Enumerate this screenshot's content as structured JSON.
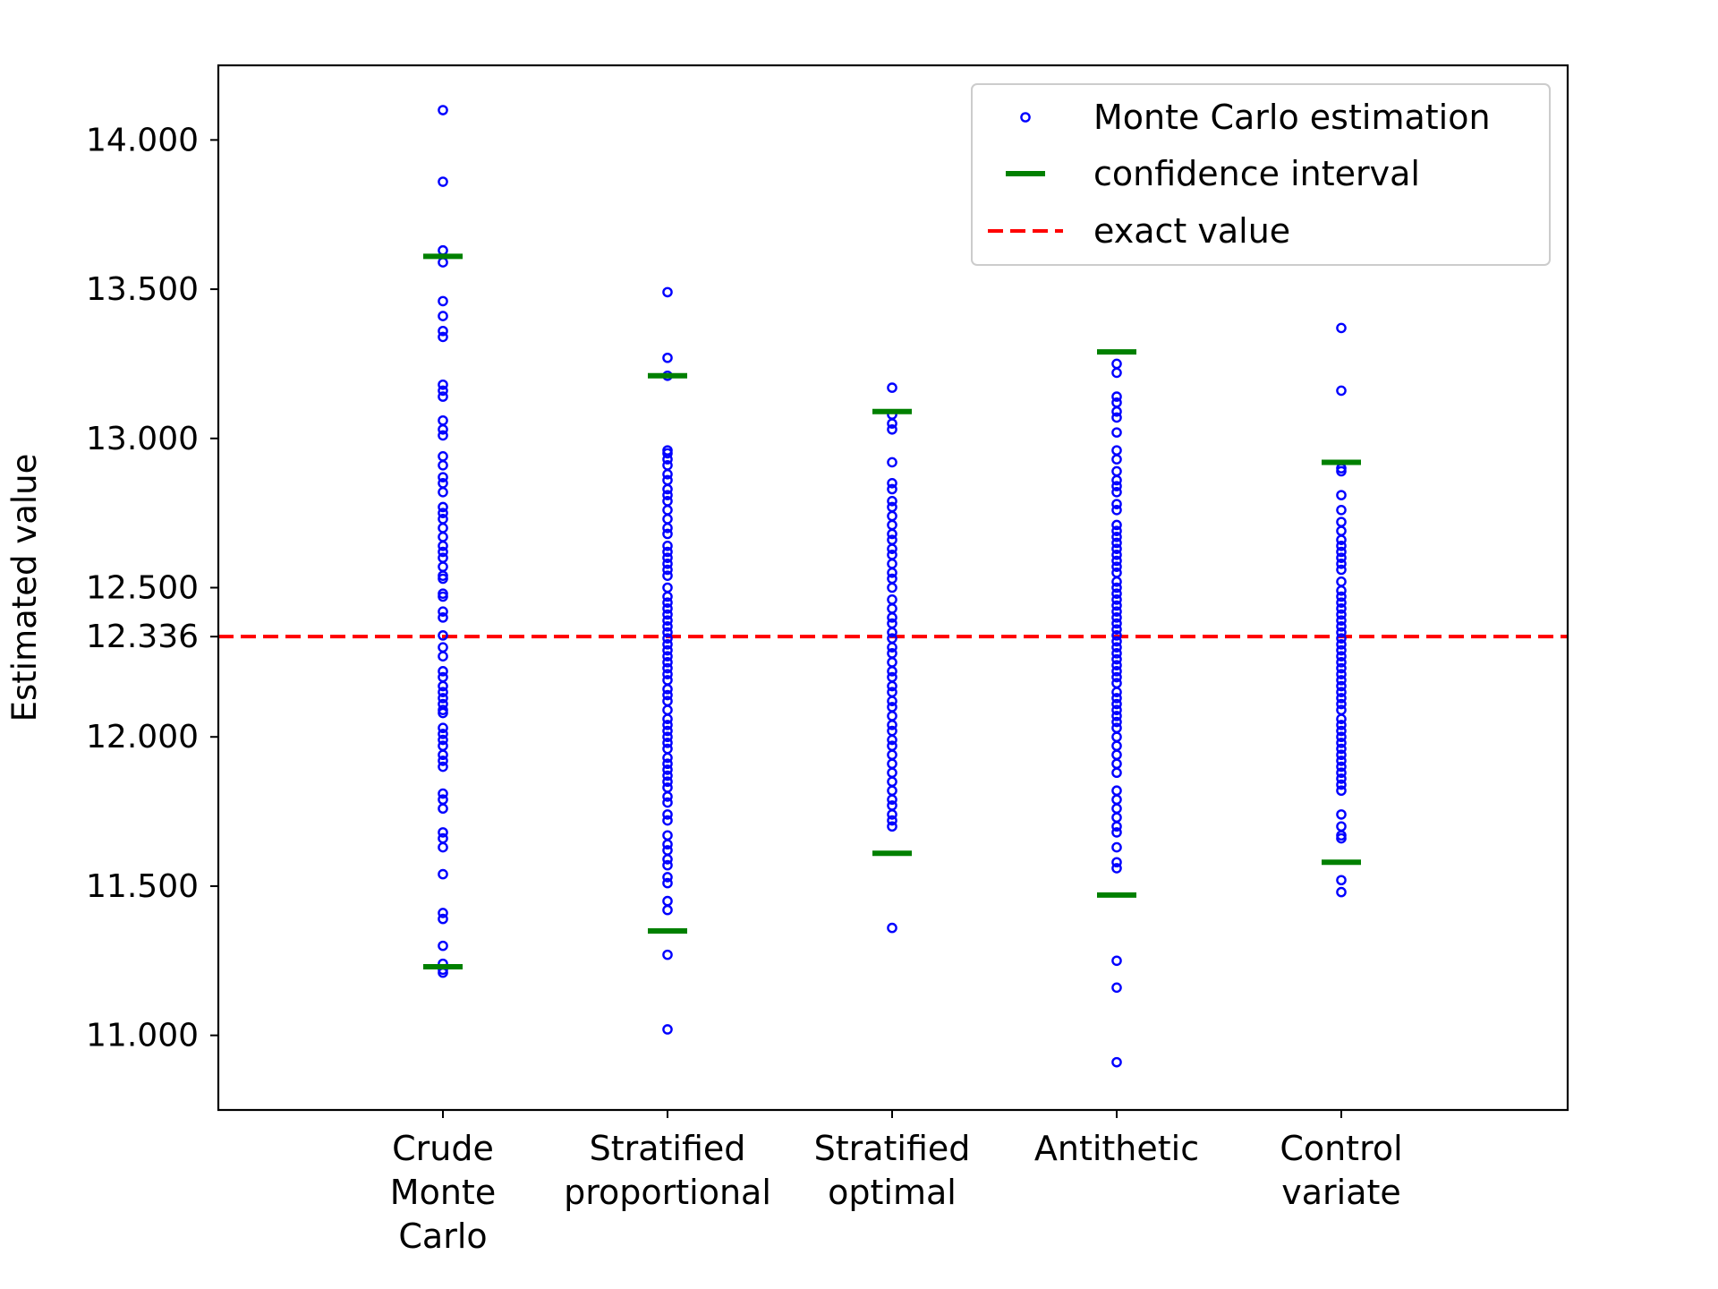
{
  "chart_data": {
    "type": "scatter",
    "title": "",
    "xlabel": "",
    "ylabel": "Estimated value",
    "ylim": [
      10.75,
      14.25
    ],
    "yticks": [
      11.0,
      11.5,
      12.0,
      12.336,
      12.5,
      13.0,
      13.5,
      14.0
    ],
    "ytick_labels": [
      "11.000",
      "11.500",
      "12.000",
      "12.336",
      "12.500",
      "13.000",
      "13.500",
      "14.000"
    ],
    "grid": false,
    "legend_position": "upper right",
    "categories": [
      "Crude\nMonte\nCarlo",
      "Stratified\nproportional",
      "Stratified\noptimal",
      "Antithetic",
      "Control\nvariate"
    ],
    "exact_value": 12.336,
    "colors": {
      "points": "#0000ff",
      "confidence": "#008000",
      "exact": "#ff0000"
    },
    "legend": [
      {
        "label": "Monte Carlo estimation",
        "marker": "circle",
        "color": "#0000ff"
      },
      {
        "label": "confidence interval",
        "marker": "hbar",
        "color": "#008000"
      },
      {
        "label": "exact value",
        "marker": "dashed-line",
        "color": "#ff0000"
      }
    ],
    "series": [
      {
        "category": "Crude\nMonte\nCarlo",
        "confidence_interval": [
          11.23,
          13.61
        ],
        "points": [
          14.1,
          13.86,
          13.63,
          13.59,
          13.46,
          13.41,
          13.36,
          13.34,
          13.18,
          13.16,
          13.14,
          13.06,
          13.03,
          13.01,
          12.94,
          12.91,
          12.87,
          12.85,
          12.82,
          12.77,
          12.75,
          12.73,
          12.7,
          12.67,
          12.64,
          12.62,
          12.6,
          12.57,
          12.54,
          12.53,
          12.48,
          12.47,
          12.42,
          12.4,
          12.34,
          12.3,
          12.27,
          12.22,
          12.2,
          12.17,
          12.15,
          12.13,
          12.11,
          12.09,
          12.08,
          12.03,
          12.01,
          11.99,
          11.97,
          11.94,
          11.92,
          11.9,
          11.81,
          11.79,
          11.76,
          11.68,
          11.66,
          11.63,
          11.54,
          11.41,
          11.39,
          11.3,
          11.24,
          11.22,
          11.21
        ]
      },
      {
        "category": "Stratified\nproportional",
        "confidence_interval": [
          11.35,
          13.21
        ],
        "points": [
          13.49,
          13.27,
          13.21,
          12.96,
          12.95,
          12.93,
          12.91,
          12.88,
          12.86,
          12.83,
          12.81,
          12.79,
          12.76,
          12.73,
          12.7,
          12.68,
          12.64,
          12.62,
          12.6,
          12.58,
          12.56,
          12.54,
          12.5,
          12.47,
          12.45,
          12.43,
          12.41,
          12.39,
          12.37,
          12.35,
          12.33,
          12.31,
          12.29,
          12.27,
          12.25,
          12.23,
          12.21,
          12.19,
          12.16,
          12.14,
          12.12,
          12.09,
          12.06,
          12.04,
          12.02,
          12.0,
          11.98,
          11.96,
          11.93,
          11.91,
          11.89,
          11.87,
          11.85,
          11.83,
          11.8,
          11.78,
          11.74,
          11.72,
          11.67,
          11.64,
          11.62,
          11.59,
          11.57,
          11.53,
          11.51,
          11.45,
          11.42,
          11.27,
          11.02
        ]
      },
      {
        "category": "Stratified\noptimal",
        "confidence_interval": [
          11.61,
          13.09
        ],
        "points": [
          13.17,
          13.08,
          13.05,
          13.03,
          12.92,
          12.85,
          12.83,
          12.79,
          12.77,
          12.74,
          12.71,
          12.68,
          12.66,
          12.63,
          12.61,
          12.58,
          12.55,
          12.53,
          12.5,
          12.46,
          12.43,
          12.4,
          12.38,
          12.35,
          12.33,
          12.3,
          12.28,
          12.25,
          12.22,
          12.2,
          12.17,
          12.15,
          12.12,
          12.1,
          12.07,
          12.04,
          12.02,
          11.99,
          11.97,
          11.94,
          11.91,
          11.88,
          11.85,
          11.82,
          11.79,
          11.77,
          11.74,
          11.72,
          11.7,
          11.36
        ]
      },
      {
        "category": "Antithetic",
        "confidence_interval": [
          11.47,
          13.29
        ],
        "points": [
          13.25,
          13.22,
          13.14,
          13.12,
          13.09,
          13.07,
          13.02,
          12.96,
          12.93,
          12.89,
          12.86,
          12.84,
          12.82,
          12.78,
          12.76,
          12.71,
          12.69,
          12.67,
          12.65,
          12.63,
          12.61,
          12.59,
          12.57,
          12.55,
          12.52,
          12.5,
          12.48,
          12.46,
          12.44,
          12.42,
          12.4,
          12.38,
          12.36,
          12.34,
          12.32,
          12.3,
          12.28,
          12.26,
          12.24,
          12.22,
          12.2,
          12.18,
          12.15,
          12.13,
          12.11,
          12.09,
          12.07,
          12.05,
          12.03,
          12.0,
          11.97,
          11.94,
          11.91,
          11.88,
          11.82,
          11.79,
          11.76,
          11.73,
          11.7,
          11.68,
          11.63,
          11.58,
          11.56,
          11.25,
          11.16,
          10.91
        ]
      },
      {
        "category": "Control\nvariate",
        "confidence_interval": [
          11.58,
          12.92
        ],
        "points": [
          13.37,
          13.16,
          12.9,
          12.89,
          12.81,
          12.76,
          12.72,
          12.69,
          12.66,
          12.64,
          12.62,
          12.6,
          12.58,
          12.56,
          12.52,
          12.49,
          12.47,
          12.45,
          12.43,
          12.41,
          12.39,
          12.37,
          12.35,
          12.33,
          12.31,
          12.29,
          12.27,
          12.25,
          12.23,
          12.21,
          12.19,
          12.17,
          12.15,
          12.13,
          12.11,
          12.09,
          12.06,
          12.04,
          12.02,
          12.0,
          11.98,
          11.96,
          11.94,
          11.92,
          11.9,
          11.88,
          11.86,
          11.84,
          11.82,
          11.74,
          11.7,
          11.67,
          11.66,
          11.52,
          11.48
        ]
      }
    ]
  }
}
